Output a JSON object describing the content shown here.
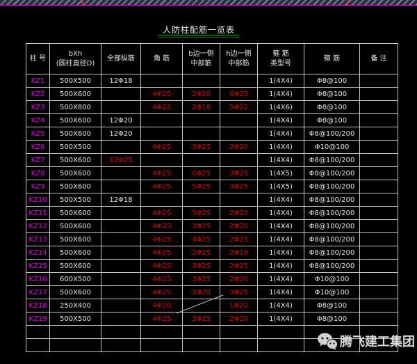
{
  "title": "人防柱配筋一览表",
  "watermark": {
    "label": "腾飞建工集团"
  },
  "colors": {
    "background": "#000000",
    "grid_line": "#c6c6c6",
    "column_label": "#d800d8",
    "rebar_red": "#d40000",
    "text_white": "#e8e8e8",
    "title_underline_green": "#00c000",
    "hatch_blue": "#7b94c4",
    "border_magenta": "#aa00aa"
  },
  "table": {
    "headers": [
      {
        "l1": "柱 号",
        "l2": ""
      },
      {
        "l1": "bXh",
        "l2": "(圆柱直径D)"
      },
      {
        "l1": "全部纵筋",
        "l2": ""
      },
      {
        "l1": "角 筋",
        "l2": ""
      },
      {
        "l1": "b边一侧",
        "l2": "中部筋"
      },
      {
        "l1": "h边一侧",
        "l2": "中部筋"
      },
      {
        "l1": "箍 筋",
        "l2": "类型号"
      },
      {
        "l1": "箍 筋",
        "l2": ""
      },
      {
        "l1": "备 注",
        "l2": ""
      }
    ],
    "rows": [
      {
        "id": "KZ1",
        "bxh": "500X500",
        "all": "12Φ18",
        "corner": "",
        "b_side": "",
        "h_side": "",
        "type": "1(4X4)",
        "stirrup": "Φ8@100",
        "note": ""
      },
      {
        "id": "KZ2",
        "bxh": "500X600",
        "all": "",
        "corner": "4Φ25",
        "b_side": "2Φ20",
        "h_side": "6Φ25",
        "type": "1(4X4)",
        "stirrup": "Φ8@100",
        "note": ""
      },
      {
        "id": "KZ3",
        "bxh": "500X800",
        "all": "",
        "corner": "4Φ22",
        "b_side": "2Φ18",
        "h_side": "5Φ22",
        "type": "1(4X6)",
        "stirrup": "Φ8@100",
        "note": ""
      },
      {
        "id": "KZ4",
        "bxh": "500X600",
        "all": "12Φ20",
        "corner": "",
        "b_side": "",
        "h_side": "",
        "type": "1(4X4)",
        "stirrup": "Φ8@100",
        "note": ""
      },
      {
        "id": "KZ5",
        "bxh": "500X600",
        "all": "12Φ20",
        "corner": "",
        "b_side": "",
        "h_side": "",
        "type": "1(4X4)",
        "stirrup": "Φ8@100/200",
        "note": ""
      },
      {
        "id": "KZ6",
        "bxh": "500X500",
        "all": "",
        "corner": "4Φ25",
        "b_side": "3Φ25",
        "h_side": "2Φ20",
        "type": "1(4X4)",
        "stirrup": "Φ10@100",
        "note": ""
      },
      {
        "id": "KZ7",
        "bxh": "500X600",
        "all": "12Φ25",
        "all_red": true,
        "corner": "",
        "b_side": "",
        "h_side": "",
        "type": "1(4X4)",
        "stirrup": "Φ8@100/200",
        "note": ""
      },
      {
        "id": "KZ8",
        "bxh": "500X600",
        "all": "",
        "corner": "4Φ25",
        "b_side": "6Φ25",
        "h_side": "3Φ25",
        "type": "1(4X5)",
        "stirrup": "Φ8@100/200",
        "note": ""
      },
      {
        "id": "KZ9",
        "bxh": "500X600",
        "all": "",
        "corner": "4Φ25",
        "b_side": "5Φ25",
        "h_side": "3Φ25",
        "type": "1(4X5)",
        "stirrup": "Φ8@100/200",
        "note": ""
      },
      {
        "id": "KZ10",
        "bxh": "500X500",
        "all": "12Φ18",
        "corner": "",
        "b_side": "",
        "h_side": "",
        "type": "1(4X4)",
        "stirrup": "Φ8@100/200",
        "note": ""
      },
      {
        "id": "KZ11",
        "bxh": "500X600",
        "all": "",
        "corner": "4Φ25",
        "b_side": "5Φ25",
        "h_side": "2Φ20",
        "type": "1(4X4)",
        "stirrup": "Φ8@100/200",
        "note": ""
      },
      {
        "id": "KZ12",
        "bxh": "500X600",
        "all": "",
        "corner": "4Φ25",
        "b_side": "3Φ25",
        "h_side": "2Φ20",
        "type": "1(4X4)",
        "stirrup": "Φ8@100/200",
        "note": ""
      },
      {
        "id": "KZ13",
        "bxh": "500X600",
        "all": "",
        "corner": "4Φ25",
        "b_side": "4Φ25",
        "h_side": "2Φ25",
        "type": "1(4X4)",
        "stirrup": "Φ8@100/200",
        "note": ""
      },
      {
        "id": "KZ14",
        "bxh": "500X600",
        "all": "",
        "corner": "4Φ25",
        "b_side": "2Φ25",
        "h_side": "2Φ18",
        "type": "1(4X4)",
        "stirrup": "Φ8@100/200",
        "note": ""
      },
      {
        "id": "KZ15",
        "bxh": "500X600",
        "all": "",
        "corner": "4Φ25",
        "b_side": "3Φ25",
        "h_side": "2Φ25",
        "type": "1(4X4)",
        "stirrup": "Φ8@100/200",
        "note": ""
      },
      {
        "id": "KZ16",
        "bxh": "600X500",
        "all": "",
        "corner": "4Φ25",
        "b_side": "3Φ25",
        "h_side": "2Φ20",
        "type": "1(4X4)",
        "stirrup": "Φ10@100",
        "note": ""
      },
      {
        "id": "KZ17",
        "bxh": "500X600",
        "all": "",
        "corner": "4Φ25",
        "b_side": "2Φ20",
        "h_side": "3Φ25",
        "type": "1(4X4)",
        "stirrup": "Φ10@100",
        "note": ""
      },
      {
        "id": "KZ18",
        "bxh": "250X400",
        "all": "",
        "corner": "4Φ20",
        "b_side": "",
        "b_side_diagonal": true,
        "h_side": "1Φ20",
        "type": "1(4X4)",
        "stirrup": "Φ8@100",
        "note": ""
      },
      {
        "id": "KZ19",
        "bxh": "500X500",
        "all": "",
        "corner": "4Φ25",
        "b_side": "3Φ25",
        "h_side": "2Φ20",
        "type": "1(4X4)",
        "stirrup": "Φ8@100",
        "note": ""
      },
      {
        "id": "",
        "bxh": "",
        "all": "",
        "corner": "",
        "b_side": "",
        "h_side": "",
        "type": "",
        "stirrup": "",
        "note": ""
      },
      {
        "id": "",
        "bxh": "",
        "all": "",
        "corner": "",
        "b_side": "",
        "h_side": "",
        "type": "",
        "stirrup": "",
        "note": ""
      }
    ]
  }
}
